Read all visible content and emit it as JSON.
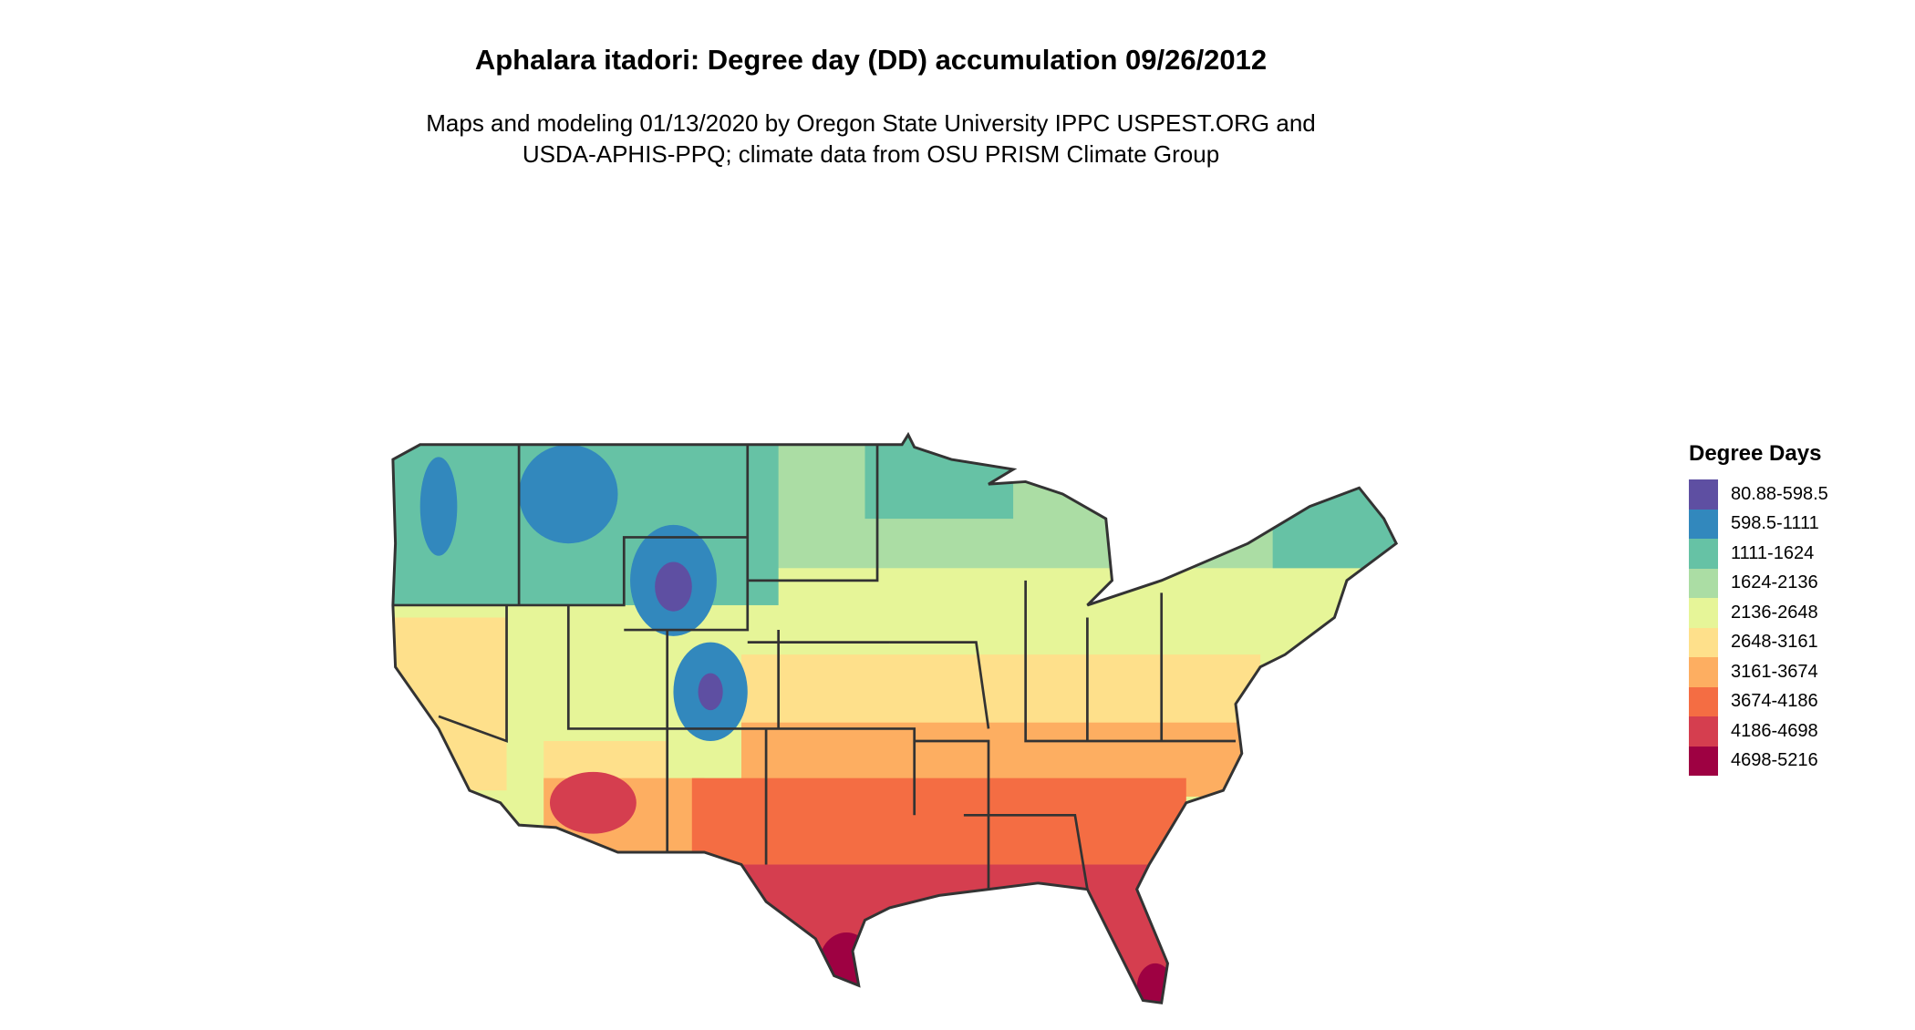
{
  "title": "Aphalara itadori: Degree day (DD) accumulation 09/26/2012",
  "subtitle_line1": "Maps and modeling 01/13/2020 by Oregon State University IPPC USPEST.ORG and",
  "subtitle_line2": "USDA-APHIS-PPQ; climate data from OSU PRISM Climate Group",
  "legend": {
    "title": "Degree Days",
    "items": [
      {
        "label": "80.88-598.5",
        "color": "#5E4FA2"
      },
      {
        "label": "598.5-1111",
        "color": "#3288BD"
      },
      {
        "label": "1111-1624",
        "color": "#66C2A5"
      },
      {
        "label": "1624-2136",
        "color": "#ABDDA4"
      },
      {
        "label": "2136-2648",
        "color": "#E6F598"
      },
      {
        "label": "2648-3161",
        "color": "#FEE08B"
      },
      {
        "label": "3161-3674",
        "color": "#FDAE61"
      },
      {
        "label": "3674-4186",
        "color": "#F46D43"
      },
      {
        "label": "4186-4698",
        "color": "#D53E4F"
      },
      {
        "label": "4698-5216",
        "color": "#9E0142"
      }
    ]
  }
}
